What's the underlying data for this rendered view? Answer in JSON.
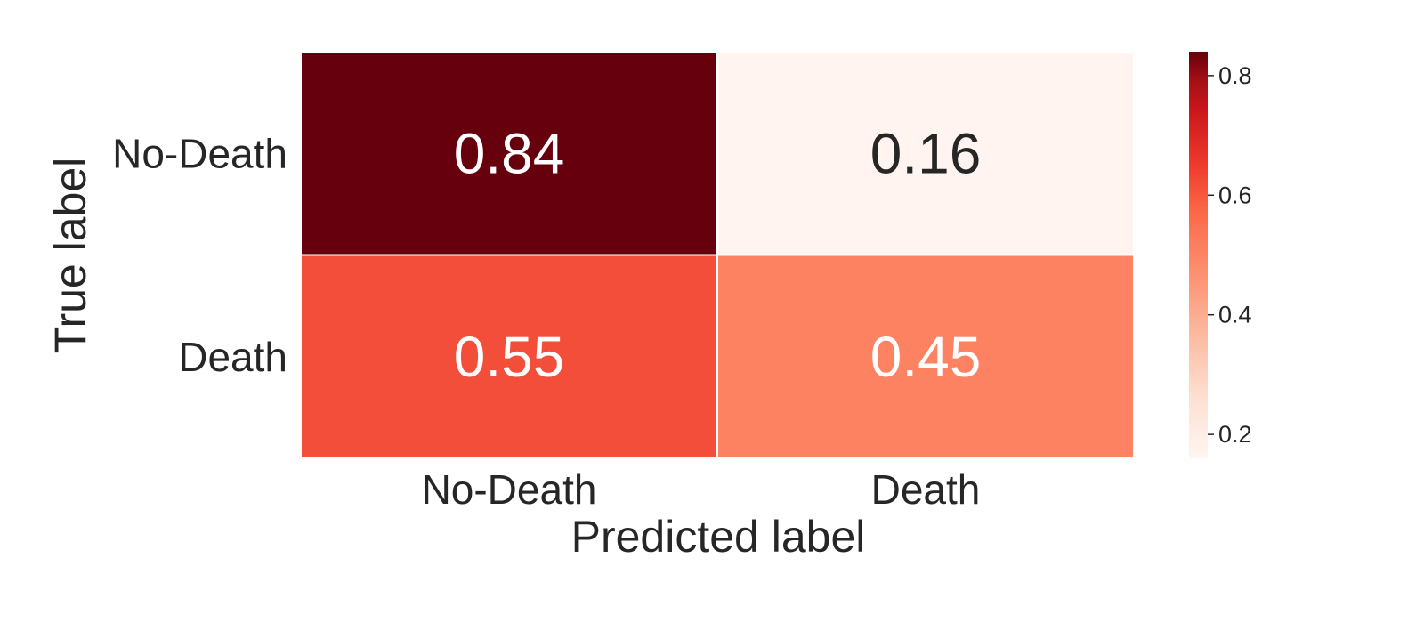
{
  "chart_data": {
    "type": "heatmap",
    "title": "",
    "xlabel": "Predicted label",
    "ylabel": "True label",
    "x_categories": [
      "No-Death",
      "Death"
    ],
    "y_categories": [
      "No-Death",
      "Death"
    ],
    "values": [
      [
        0.84,
        0.16
      ],
      [
        0.55,
        0.45
      ]
    ],
    "cell_labels": [
      [
        "0.84",
        "0.16"
      ],
      [
        "0.55",
        "0.45"
      ]
    ],
    "colormap": "Reds",
    "colorbar": {
      "vmin": 0.16,
      "vmax": 0.84,
      "ticks": [
        0.2,
        0.4,
        0.6,
        0.8
      ],
      "tick_labels": [
        "0.2",
        "0.4",
        "0.6",
        "0.8"
      ],
      "placement": "right"
    },
    "colors": {
      "cell_0_0": "#67000d",
      "cell_0_1": "#fff4f0",
      "cell_1_0": "#f34e3a",
      "cell_1_1": "#fc8262",
      "dark_text": "#262626",
      "light_text": "#ffffff"
    }
  }
}
